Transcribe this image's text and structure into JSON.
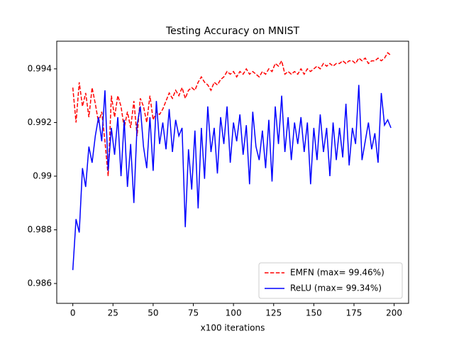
{
  "chart_data": {
    "type": "line",
    "title": "Testing Accuracy on MNIST",
    "x_label": "x100 iterations",
    "x": [
      0,
      2,
      4,
      6,
      8,
      10,
      12,
      14,
      16,
      18,
      20,
      22,
      24,
      26,
      28,
      30,
      32,
      34,
      36,
      38,
      40,
      42,
      44,
      46,
      48,
      50,
      52,
      54,
      56,
      58,
      60,
      62,
      64,
      66,
      68,
      70,
      72,
      74,
      76,
      78,
      80,
      82,
      84,
      86,
      88,
      90,
      92,
      94,
      96,
      98,
      100,
      102,
      104,
      106,
      108,
      110,
      112,
      114,
      116,
      118,
      120,
      122,
      124,
      126,
      128,
      130,
      132,
      134,
      136,
      138,
      140,
      142,
      144,
      146,
      148,
      150,
      152,
      154,
      156,
      158,
      160,
      162,
      164,
      166,
      168,
      170,
      172,
      174,
      176,
      178,
      180,
      182,
      184,
      186,
      188,
      190,
      192,
      194,
      196,
      198
    ],
    "series": [
      {
        "name": "EMFN (max= 99.46%)",
        "color": "#ff0000",
        "dash": true,
        "values": [
          0.9933,
          0.992,
          0.9935,
          0.9926,
          0.9931,
          0.9922,
          0.9933,
          0.9927,
          0.992,
          0.9924,
          0.9913,
          0.99,
          0.993,
          0.9922,
          0.993,
          0.9926,
          0.9918,
          0.9924,
          0.9918,
          0.9928,
          0.9915,
          0.9929,
          0.9926,
          0.992,
          0.993,
          0.9921,
          0.9924,
          0.9923,
          0.9925,
          0.9928,
          0.9931,
          0.9929,
          0.9932,
          0.993,
          0.9933,
          0.9929,
          0.9932,
          0.9933,
          0.9932,
          0.9935,
          0.9937,
          0.9935,
          0.9934,
          0.9932,
          0.9935,
          0.9934,
          0.9936,
          0.9937,
          0.9939,
          0.9938,
          0.9939,
          0.9937,
          0.9939,
          0.9938,
          0.994,
          0.9938,
          0.9939,
          0.9938,
          0.9937,
          0.9939,
          0.9938,
          0.994,
          0.9939,
          0.9942,
          0.9941,
          0.9943,
          0.9938,
          0.9939,
          0.9938,
          0.9939,
          0.9938,
          0.994,
          0.9938,
          0.994,
          0.9939,
          0.994,
          0.9941,
          0.994,
          0.9942,
          0.9941,
          0.9942,
          0.9941,
          0.9942,
          0.9942,
          0.9943,
          0.9942,
          0.9943,
          0.9943,
          0.9942,
          0.9944,
          0.9943,
          0.9944,
          0.9942,
          0.9943,
          0.9943,
          0.9944,
          0.9943,
          0.9944,
          0.9946,
          0.9945
        ]
      },
      {
        "name": "ReLU (max= 99.34%)",
        "color": "#0000ff",
        "dash": false,
        "values": [
          0.9865,
          0.9884,
          0.9879,
          0.9903,
          0.9896,
          0.9911,
          0.9905,
          0.9915,
          0.9922,
          0.9913,
          0.9932,
          0.9902,
          0.9918,
          0.9908,
          0.9922,
          0.99,
          0.9921,
          0.9896,
          0.9912,
          0.989,
          0.9919,
          0.9926,
          0.9911,
          0.9903,
          0.9922,
          0.9902,
          0.9928,
          0.9912,
          0.992,
          0.991,
          0.9925,
          0.9909,
          0.9921,
          0.9915,
          0.9918,
          0.9881,
          0.991,
          0.9895,
          0.9917,
          0.9888,
          0.9918,
          0.9899,
          0.9926,
          0.9909,
          0.9918,
          0.9901,
          0.9922,
          0.9912,
          0.9926,
          0.9905,
          0.992,
          0.9913,
          0.9923,
          0.9908,
          0.9919,
          0.9897,
          0.9924,
          0.9911,
          0.9906,
          0.9917,
          0.9903,
          0.9921,
          0.9898,
          0.9926,
          0.9912,
          0.993,
          0.9909,
          0.9922,
          0.9906,
          0.992,
          0.9912,
          0.9922,
          0.9909,
          0.992,
          0.9897,
          0.9918,
          0.9906,
          0.9923,
          0.9909,
          0.9918,
          0.99,
          0.992,
          0.9906,
          0.9918,
          0.9907,
          0.9927,
          0.9904,
          0.9918,
          0.9912,
          0.9934,
          0.9906,
          0.9913,
          0.992,
          0.991,
          0.9916,
          0.9905,
          0.9931,
          0.9919,
          0.9921,
          0.9918
        ]
      }
    ],
    "xlim": [
      -10,
      209
    ],
    "ylim": [
      0.98526,
      0.99503
    ],
    "xticks": [
      0,
      25,
      50,
      75,
      100,
      125,
      150,
      175,
      200
    ],
    "yticks": [
      0.986,
      0.988,
      0.99,
      0.992,
      0.994
    ],
    "grid": false,
    "legend": "lower right"
  }
}
